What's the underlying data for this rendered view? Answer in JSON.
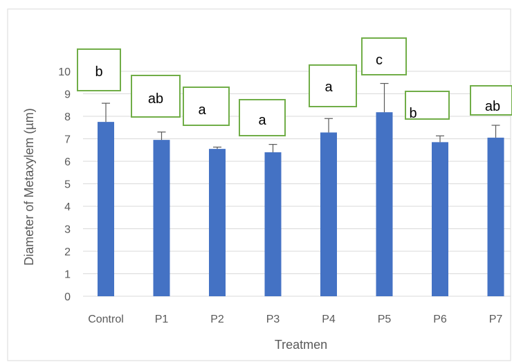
{
  "chart_data": {
    "type": "bar",
    "categories": [
      "Control",
      "P1",
      "P2",
      "P3",
      "P4",
      "P5",
      "P6",
      "P7"
    ],
    "values": [
      7.75,
      6.95,
      6.55,
      6.4,
      7.28,
      8.18,
      6.85,
      7.05
    ],
    "error": [
      0.83,
      0.35,
      0.08,
      0.35,
      0.62,
      1.28,
      0.28,
      0.55
    ],
    "letters": [
      "b",
      "ab",
      "a",
      "a",
      "a",
      "c",
      "b",
      "ab"
    ],
    "xlabel": "Treatmen",
    "ylabel": "Diameter of  Metaxylem (µm)",
    "ylim": [
      0,
      10
    ],
    "yticks": [
      0,
      1,
      2,
      3,
      4,
      5,
      6,
      7,
      8,
      9,
      10
    ],
    "grid": true,
    "colors": {
      "bar": "#4472c4",
      "grid": "#d9d9d9",
      "box_border": "#70ad47",
      "error": "#595959",
      "text": "#595959"
    }
  }
}
